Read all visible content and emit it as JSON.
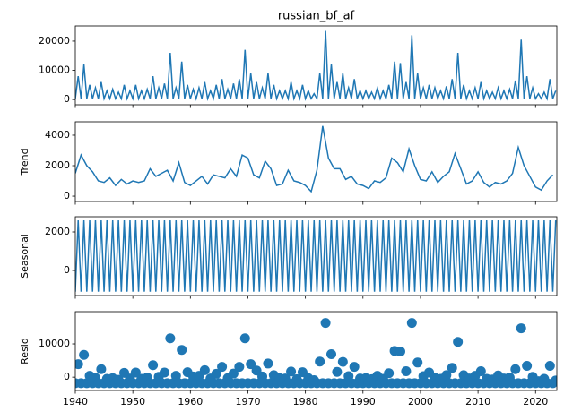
{
  "chart_data": [
    {
      "type": "line",
      "title": "russian_bf_af",
      "color": "#1f77b4",
      "x": [
        1940,
        1940.5,
        1941,
        1941.5,
        1942,
        1942.5,
        1943,
        1943.5,
        1944,
        1944.5,
        1945,
        1945.5,
        1946,
        1946.5,
        1947,
        1947.5,
        1948,
        1948.5,
        1949,
        1949.5,
        1950,
        1950.5,
        1951,
        1951.5,
        1952,
        1952.5,
        1953,
        1953.5,
        1954,
        1954.5,
        1955,
        1955.5,
        1956,
        1956.5,
        1957,
        1957.5,
        1958,
        1958.5,
        1959,
        1959.5,
        1960,
        1960.5,
        1961,
        1961.5,
        1962,
        1962.5,
        1963,
        1963.5,
        1964,
        1964.5,
        1965,
        1965.5,
        1966,
        1966.5,
        1967,
        1967.5,
        1968,
        1968.5,
        1969,
        1969.5,
        1970,
        1970.5,
        1971,
        1971.5,
        1972,
        1972.5,
        1973,
        1973.5,
        1974,
        1974.5,
        1975,
        1975.5,
        1976,
        1976.5,
        1977,
        1977.5,
        1978,
        1978.5,
        1979,
        1979.5,
        1980,
        1980.5,
        1981,
        1981.5,
        1982,
        1982.5,
        1983,
        1983.5,
        1984,
        1984.5,
        1985,
        1985.5,
        1986,
        1986.5,
        1987,
        1987.5,
        1988,
        1988.5,
        1989,
        1989.5,
        1990,
        1990.5,
        1991,
        1991.5,
        1992,
        1992.5,
        1993,
        1993.5,
        1994,
        1994.5,
        1995,
        1995.5,
        1996,
        1996.5,
        1997,
        1997.5,
        1998,
        1998.5,
        1999,
        1999.5,
        2000,
        2000.5,
        2001,
        2001.5,
        2002,
        2002.5,
        2003,
        2003.5,
        2004,
        2004.5,
        2005,
        2005.5,
        2006,
        2006.5,
        2007,
        2007.5,
        2008,
        2008.5,
        2009,
        2009.5,
        2010,
        2010.5,
        2011,
        2011.5,
        2012,
        2012.5,
        2013,
        2013.5,
        2014,
        2014.5,
        2015,
        2015.5,
        2016,
        2016.5,
        2017,
        2017.5,
        2018,
        2018.5,
        2019,
        2019.5,
        2020,
        2020.5,
        2021,
        2021.5,
        2022,
        2022.5,
        2023,
        2023.5
      ],
      "values": [
        300,
        8000,
        300,
        12000,
        300,
        5000,
        300,
        4000,
        300,
        6000,
        300,
        3000,
        300,
        3500,
        300,
        2500,
        300,
        5000,
        300,
        3000,
        300,
        5000,
        300,
        3000,
        300,
        3500,
        300,
        8000,
        300,
        4000,
        300,
        5500,
        300,
        16000,
        300,
        4000,
        300,
        13000,
        300,
        5000,
        300,
        3500,
        300,
        4000,
        300,
        6000,
        300,
        3000,
        300,
        5000,
        300,
        7000,
        300,
        3500,
        300,
        5500,
        300,
        7000,
        300,
        17000,
        300,
        9000,
        300,
        6000,
        300,
        4000,
        300,
        9000,
        300,
        5000,
        300,
        3000,
        300,
        3000,
        300,
        6000,
        300,
        3000,
        300,
        5000,
        300,
        3000,
        300,
        2000,
        300,
        9000,
        300,
        23500,
        300,
        12000,
        300,
        6000,
        300,
        9000,
        300,
        4000,
        300,
        7000,
        300,
        3000,
        300,
        3000,
        300,
        2500,
        300,
        4000,
        300,
        3000,
        300,
        5000,
        300,
        13000,
        300,
        12500,
        300,
        6000,
        300,
        22000,
        300,
        9000,
        300,
        4000,
        300,
        5000,
        300,
        4000,
        300,
        3000,
        300,
        4500,
        300,
        7000,
        300,
        16000,
        300,
        5000,
        300,
        3000,
        300,
        4000,
        300,
        6000,
        300,
        3000,
        300,
        2500,
        300,
        4000,
        300,
        3000,
        300,
        3500,
        300,
        6500,
        300,
        20500,
        300,
        8000,
        300,
        4000,
        300,
        2000,
        300,
        2500,
        300,
        7000,
        300,
        3000
      ],
      "xlim": [
        1940,
        2023.7
      ],
      "xticks": [
        1940,
        1950,
        1960,
        1970,
        1980,
        1990,
        2000,
        2010,
        2020
      ],
      "ylim": [
        -1800,
        25200
      ],
      "yticks": [
        0,
        10000,
        20000
      ]
    },
    {
      "type": "line",
      "ylabel": "Trend",
      "color": "#1f77b4",
      "x": [
        1940,
        1941,
        1942,
        1943,
        1944,
        1945,
        1946,
        1947,
        1948,
        1949,
        1950,
        1951,
        1952,
        1953,
        1954,
        1955,
        1956,
        1957,
        1958,
        1959,
        1960,
        1961,
        1962,
        1963,
        1964,
        1965,
        1966,
        1967,
        1968,
        1969,
        1970,
        1971,
        1972,
        1973,
        1974,
        1975,
        1976,
        1977,
        1978,
        1979,
        1980,
        1981,
        1982,
        1983,
        1984,
        1985,
        1986,
        1987,
        1988,
        1989,
        1990,
        1991,
        1992,
        1993,
        1994,
        1995,
        1996,
        1997,
        1998,
        1999,
        2000,
        2001,
        2002,
        2003,
        2004,
        2005,
        2006,
        2007,
        2008,
        2009,
        2010,
        2011,
        2012,
        2013,
        2014,
        2015,
        2016,
        2017,
        2018,
        2019,
        2020,
        2021,
        2022,
        2023
      ],
      "values": [
        1500,
        2700,
        2000,
        1600,
        1000,
        900,
        1200,
        700,
        1100,
        800,
        1000,
        900,
        1000,
        1800,
        1300,
        1500,
        1700,
        1000,
        2200,
        900,
        700,
        1000,
        1300,
        800,
        1400,
        1300,
        1200,
        1800,
        1300,
        2700,
        2500,
        1400,
        1200,
        2300,
        1800,
        700,
        800,
        1700,
        1000,
        900,
        700,
        300,
        1700,
        4600,
        2500,
        1800,
        1800,
        1100,
        1300,
        800,
        700,
        500,
        1000,
        900,
        1200,
        2500,
        2200,
        1600,
        3100,
        2000,
        1100,
        1000,
        1600,
        900,
        1300,
        1600,
        2800,
        1800,
        800,
        1000,
        1600,
        900,
        600,
        900,
        800,
        1000,
        1500,
        3200,
        2000,
        1300,
        600,
        400,
        1000,
        1400
      ],
      "xlim": [
        1940,
        2023.7
      ],
      "xticks": [
        1940,
        1950,
        1960,
        1970,
        1980,
        1990,
        2000,
        2010,
        2020
      ],
      "ylim": [
        -350,
        4880
      ],
      "yticks": [
        0,
        2000,
        4000
      ]
    },
    {
      "type": "line",
      "ylabel": "Seasonal",
      "color": "#1f77b4",
      "x": [
        1940,
        1940.5,
        1941,
        1941.5,
        1942,
        1942.5,
        1943,
        1943.5,
        1944,
        1944.5,
        1945,
        1945.5,
        1946,
        1946.5,
        1947,
        1947.5,
        1948,
        1948.5,
        1949,
        1949.5,
        1950,
        1950.5,
        1951,
        1951.5,
        1952,
        1952.5,
        1953,
        1953.5,
        1954,
        1954.5,
        1955,
        1955.5,
        1956,
        1956.5,
        1957,
        1957.5,
        1958,
        1958.5,
        1959,
        1959.5,
        1960,
        1960.5,
        1961,
        1961.5,
        1962,
        1962.5,
        1963,
        1963.5,
        1964,
        1964.5,
        1965,
        1965.5,
        1966,
        1966.5,
        1967,
        1967.5,
        1968,
        1968.5,
        1969,
        1969.5,
        1970,
        1970.5,
        1971,
        1971.5,
        1972,
        1972.5,
        1973,
        1973.5,
        1974,
        1974.5,
        1975,
        1975.5,
        1976,
        1976.5,
        1977,
        1977.5,
        1978,
        1978.5,
        1979,
        1979.5,
        1980,
        1980.5,
        1981,
        1981.5,
        1982,
        1982.5,
        1983,
        1983.5,
        1984,
        1984.5,
        1985,
        1985.5,
        1986,
        1986.5,
        1987,
        1987.5,
        1988,
        1988.5,
        1989,
        1989.5,
        1990,
        1990.5,
        1991,
        1991.5,
        1992,
        1992.5,
        1993,
        1993.5,
        1994,
        1994.5,
        1995,
        1995.5,
        1996,
        1996.5,
        1997,
        1997.5,
        1998,
        1998.5,
        1999,
        1999.5,
        2000,
        2000.5,
        2001,
        2001.5,
        2002,
        2002.5,
        2003,
        2003.5,
        2004,
        2004.5,
        2005,
        2005.5,
        2006,
        2006.5,
        2007,
        2007.5,
        2008,
        2008.5,
        2009,
        2009.5,
        2010,
        2010.5,
        2011,
        2011.5,
        2012,
        2012.5,
        2013,
        2013.5,
        2014,
        2014.5,
        2015,
        2015.5,
        2016,
        2016.5,
        2017,
        2017.5,
        2018,
        2018.5,
        2019,
        2019.5,
        2020,
        2020.5,
        2021,
        2021.5,
        2022,
        2022.5,
        2023,
        2023.5
      ],
      "values": [
        -1100,
        2600,
        -1100,
        2600,
        -1100,
        2600,
        -1100,
        2600,
        -1100,
        2600,
        -1100,
        2600,
        -1100,
        2600,
        -1100,
        2600,
        -1100,
        2600,
        -1100,
        2600,
        -1100,
        2600,
        -1100,
        2600,
        -1100,
        2600,
        -1100,
        2600,
        -1100,
        2600,
        -1100,
        2600,
        -1100,
        2600,
        -1100,
        2600,
        -1100,
        2600,
        -1100,
        2600,
        -1100,
        2600,
        -1100,
        2600,
        -1100,
        2600,
        -1100,
        2600,
        -1100,
        2600,
        -1100,
        2600,
        -1100,
        2600,
        -1100,
        2600,
        -1100,
        2600,
        -1100,
        2600,
        -1100,
        2600,
        -1100,
        2600,
        -1100,
        2600,
        -1100,
        2600,
        -1100,
        2600,
        -1100,
        2600,
        -1100,
        2600,
        -1100,
        2600,
        -1100,
        2600,
        -1100,
        2600,
        -1100,
        2600,
        -1100,
        2600,
        -1100,
        2600,
        -1100,
        2600,
        -1100,
        2600,
        -1100,
        2600,
        -1100,
        2600,
        -1100,
        2600,
        -1100,
        2600,
        -1100,
        2600,
        -1100,
        2600,
        -1100,
        2600,
        -1100,
        2600,
        -1100,
        2600,
        -1100,
        2600,
        -1100,
        2600,
        -1100,
        2600,
        -1100,
        2600,
        -1100,
        2600,
        -1100,
        2600,
        -1100,
        2600,
        -1100,
        2600,
        -1100,
        2600,
        -1100,
        2600,
        -1100,
        2600,
        -1100,
        2600,
        -1100,
        2600,
        -1100,
        2600,
        -1100,
        2600,
        -1100,
        2600,
        -1100,
        2600,
        -1100,
        2600,
        -1100,
        2600,
        -1100,
        2600,
        -1100,
        2600,
        -1100,
        2600,
        -1100,
        2600,
        -1100,
        2600,
        -1100,
        2600,
        -1100,
        2600,
        -1100,
        2600,
        -1100,
        2600,
        -1100,
        2600,
        -1100,
        2600
      ],
      "xlim": [
        1940,
        2023.7
      ],
      "xticks": [
        1940,
        1950,
        1960,
        1970,
        1980,
        1990,
        2000,
        2010,
        2020
      ],
      "ylim": [
        -1300,
        2790
      ],
      "yticks": [
        0,
        2000
      ]
    },
    {
      "type": "scatter",
      "ylabel": "Resid",
      "color": "#1f77b4",
      "x": [
        1940,
        1940.5,
        1941,
        1941.5,
        1942,
        1942.5,
        1943,
        1943.5,
        1944,
        1944.5,
        1945,
        1945.5,
        1946,
        1946.5,
        1947,
        1947.5,
        1948,
        1948.5,
        1949,
        1949.5,
        1950,
        1950.5,
        1951,
        1951.5,
        1952,
        1952.5,
        1953,
        1953.5,
        1954,
        1954.5,
        1955,
        1955.5,
        1956,
        1956.5,
        1957,
        1957.5,
        1958,
        1958.5,
        1959,
        1959.5,
        1960,
        1960.5,
        1961,
        1961.5,
        1962,
        1962.5,
        1963,
        1963.5,
        1964,
        1964.5,
        1965,
        1965.5,
        1966,
        1966.5,
        1967,
        1967.5,
        1968,
        1968.5,
        1969,
        1969.5,
        1970,
        1970.5,
        1971,
        1971.5,
        1972,
        1972.5,
        1973,
        1973.5,
        1974,
        1974.5,
        1975,
        1975.5,
        1976,
        1976.5,
        1977,
        1977.5,
        1978,
        1978.5,
        1979,
        1979.5,
        1980,
        1980.5,
        1981,
        1981.5,
        1982,
        1982.5,
        1983,
        1983.5,
        1984,
        1984.5,
        1985,
        1985.5,
        1986,
        1986.5,
        1987,
        1987.5,
        1988,
        1988.5,
        1989,
        1989.5,
        1990,
        1990.5,
        1991,
        1991.5,
        1992,
        1992.5,
        1993,
        1993.5,
        1994,
        1994.5,
        1995,
        1995.5,
        1996,
        1996.5,
        1997,
        1997.5,
        1998,
        1998.5,
        1999,
        1999.5,
        2000,
        2000.5,
        2001,
        2001.5,
        2002,
        2002.5,
        2003,
        2003.5,
        2004,
        2004.5,
        2005,
        2005.5,
        2006,
        2006.5,
        2007,
        2007.5,
        2008,
        2008.5,
        2009,
        2009.5,
        2010,
        2010.5,
        2011,
        2011.5,
        2012,
        2012.5,
        2013,
        2013.5,
        2014,
        2014.5,
        2015,
        2015.5,
        2016,
        2016.5,
        2017,
        2017.5,
        2018,
        2018.5,
        2019,
        2019.5,
        2020,
        2020.5,
        2021,
        2021.5,
        2022,
        2022.5,
        2023,
        2023.5
      ],
      "values": [
        -1800,
        3900,
        -1800,
        6700,
        -1800,
        400,
        -1800,
        -200,
        -1800,
        2400,
        -1800,
        -500,
        -1800,
        -300,
        -1800,
        -800,
        -1800,
        1300,
        -1800,
        -400,
        -1800,
        1400,
        -1800,
        -500,
        -1800,
        -100,
        -1800,
        3600,
        -1800,
        100,
        -1800,
        1400,
        -1800,
        11700,
        -1800,
        400,
        -1800,
        8200,
        -1800,
        1500,
        -1800,
        200,
        -1800,
        400,
        -1800,
        2100,
        -1800,
        -400,
        -1800,
        1000,
        -1800,
        3100,
        -1800,
        -300,
        -1800,
        1100,
        -1800,
        3100,
        -1800,
        11700,
        -1800,
        3900,
        -1800,
        2000,
        -1800,
        200,
        -1800,
        4100,
        -1800,
        600,
        -1800,
        -300,
        -1800,
        -400,
        -1800,
        1700,
        -1800,
        -600,
        -1800,
        1500,
        -1800,
        -300,
        -1800,
        -900,
        -1800,
        4700,
        -1800,
        16300,
        -1800,
        6900,
        -1800,
        1600,
        -1800,
        4600,
        -1800,
        300,
        -1800,
        3100,
        -1800,
        -400,
        -1800,
        -300,
        -1800,
        -600,
        -1800,
        400,
        -1800,
        -500,
        -1800,
        1200,
        -1800,
        7900,
        -1800,
        7700,
        -1800,
        1800,
        -1800,
        16300,
        -1800,
        4400,
        -1800,
        300,
        -1800,
        1400,
        -1800,
        -200,
        -1800,
        -500,
        -1800,
        600,
        -1800,
        2800,
        -1800,
        10600,
        -1800,
        600,
        -1800,
        -400,
        -1800,
        400,
        -1800,
        1800,
        -1800,
        -500,
        -1800,
        -700,
        -1800,
        500,
        -1800,
        -400,
        -1800,
        -100,
        -1800,
        2400,
        -1800,
        14700,
        -1800,
        3400,
        -1800,
        100,
        -1800,
        -1200,
        -1800,
        -500,
        -1800,
        3400,
        -1800,
        -1000
      ],
      "xlim": [
        1940,
        2023.7
      ],
      "xticks": [
        1940,
        1950,
        1960,
        1970,
        1980,
        1990,
        2000,
        2010,
        2020
      ],
      "ylim": [
        -4000,
        19700
      ],
      "yticks": [
        0,
        10000
      ]
    }
  ]
}
